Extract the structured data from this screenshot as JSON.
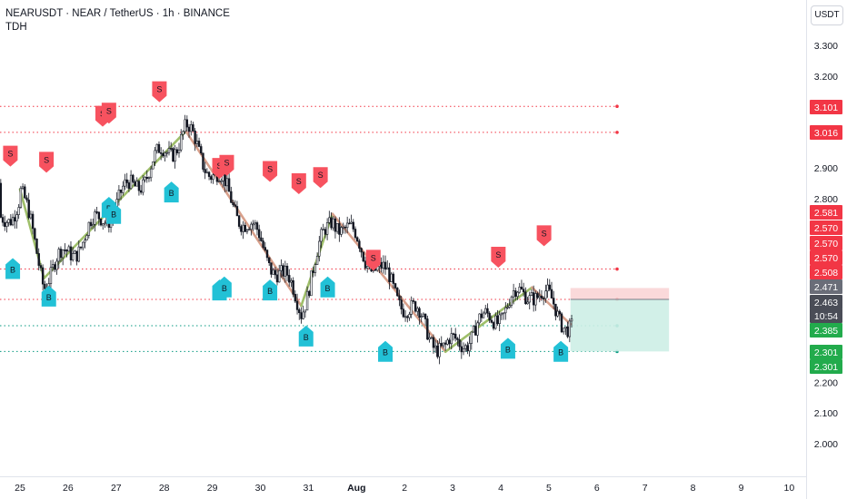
{
  "header": {
    "title": "NEARUSDT · NEAR / TetherUS · 1h · BINANCE",
    "indicator": "TDH"
  },
  "axis": {
    "currency_button": "USDT",
    "price_ticks": [
      "3.300",
      "3.200",
      "2.900",
      "2.800",
      "2.200",
      "2.100",
      "2.000"
    ],
    "time_ticks": [
      "25",
      "26",
      "27",
      "28",
      "29",
      "30",
      "31",
      "Aug",
      "2",
      "3",
      "4",
      "5",
      "6",
      "7",
      "8",
      "9",
      "10"
    ]
  },
  "colors": {
    "sell": "#f7525f",
    "buy": "#22c1d6",
    "resistance_line": "#f23645",
    "support_line": "#089981",
    "up_leg": "#9fbf6a",
    "down_leg": "#d8a08b",
    "candle": "#131722",
    "stop_zone": "#f9d2d3",
    "target_zone": "#cdeee5"
  },
  "chart_data": {
    "type": "candlestick",
    "symbol": "NEARUSDT",
    "exchange": "BINANCE",
    "interval": "1h",
    "y_range": [
      1.95,
      3.4
    ],
    "key_levels": {
      "resistance": [
        3.101,
        3.016,
        2.57,
        2.471
      ],
      "support": [
        2.385,
        2.301
      ]
    },
    "price_labels": [
      {
        "value": "3.101",
        "kind": "red"
      },
      {
        "value": "3.016",
        "kind": "red"
      },
      {
        "value": "2.581",
        "kind": "red"
      },
      {
        "value": "2.570",
        "kind": "red"
      },
      {
        "value": "2.570",
        "kind": "red"
      },
      {
        "value": "2.570",
        "kind": "red"
      },
      {
        "value": "2.508",
        "kind": "red"
      },
      {
        "value": "2.471",
        "kind": "gray"
      },
      {
        "value": "2.463",
        "kind": "dark"
      },
      {
        "value": "10:54",
        "kind": "dark"
      },
      {
        "value": "2.385",
        "kind": "green"
      },
      {
        "value": "2.301",
        "kind": "green"
      },
      {
        "value": "2.301",
        "kind": "green"
      }
    ],
    "zigzag": [
      {
        "t": 0.0,
        "p": 2.83,
        "dir": "up"
      },
      {
        "t": 0.5,
        "p": 2.54,
        "dir": "up"
      },
      {
        "t": 3.45,
        "p": 3.02,
        "dir": "down"
      },
      {
        "t": 5.85,
        "p": 2.45,
        "dir": "up"
      },
      {
        "t": 6.5,
        "p": 2.75,
        "dir": "down"
      },
      {
        "t": 8.85,
        "p": 2.3,
        "dir": "up"
      },
      {
        "t": 10.65,
        "p": 2.51,
        "dir": "down"
      },
      {
        "t": 11.45,
        "p": 2.39,
        "dir": "none"
      }
    ],
    "sell_signals": [
      {
        "t": -0.2,
        "p": 2.94
      },
      {
        "t": 0.55,
        "p": 2.92
      },
      {
        "t": 1.72,
        "p": 3.07
      },
      {
        "t": 1.85,
        "p": 3.08
      },
      {
        "t": 2.9,
        "p": 3.15
      },
      {
        "t": 4.15,
        "p": 2.9
      },
      {
        "t": 4.3,
        "p": 2.91
      },
      {
        "t": 5.2,
        "p": 2.89
      },
      {
        "t": 5.8,
        "p": 2.85
      },
      {
        "t": 6.25,
        "p": 2.87
      },
      {
        "t": 7.35,
        "p": 2.6
      },
      {
        "t": 9.95,
        "p": 2.61
      },
      {
        "t": 10.9,
        "p": 2.68
      }
    ],
    "buy_signals": [
      {
        "t": -0.15,
        "p": 2.57
      },
      {
        "t": 0.6,
        "p": 2.48
      },
      {
        "t": 1.85,
        "p": 2.77
      },
      {
        "t": 1.95,
        "p": 2.75
      },
      {
        "t": 3.15,
        "p": 2.82
      },
      {
        "t": 4.15,
        "p": 2.5
      },
      {
        "t": 4.25,
        "p": 2.51
      },
      {
        "t": 5.2,
        "p": 2.5
      },
      {
        "t": 5.95,
        "p": 2.35
      },
      {
        "t": 6.4,
        "p": 2.51
      },
      {
        "t": 7.6,
        "p": 2.3
      },
      {
        "t": 10.15,
        "p": 2.31
      },
      {
        "t": 11.25,
        "p": 2.3
      }
    ],
    "position_tool": {
      "entry": 2.471,
      "stop": 2.508,
      "target": 2.301,
      "t_start": 11.45,
      "t_end": 13.5
    }
  }
}
